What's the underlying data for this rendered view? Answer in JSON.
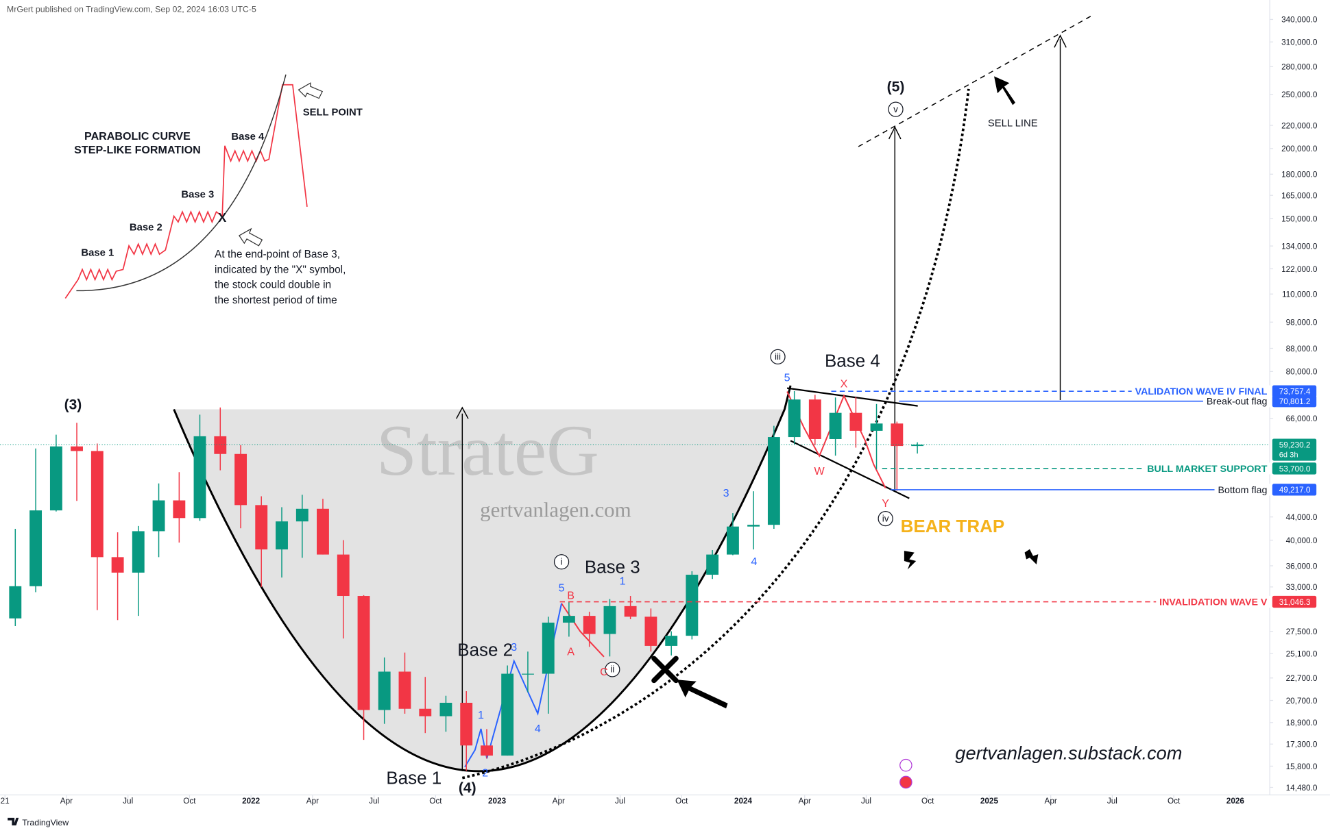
{
  "chart_data": {
    "type": "candlestick",
    "header": "MrGert published on TradingView.com, Sep 02, 2024 16:03 UTC-5",
    "footer": "TradingView",
    "up_color": "#089981",
    "down_color": "#f23645",
    "log_scale": true,
    "grid": false,
    "x": [
      2021.042,
      2021.125,
      2021.208,
      2021.292,
      2021.375,
      2021.458,
      2021.542,
      2021.625,
      2021.708,
      2021.792,
      2021.875,
      2021.958,
      2022.042,
      2022.125,
      2022.208,
      2022.292,
      2022.375,
      2022.458,
      2022.542,
      2022.625,
      2022.708,
      2022.792,
      2022.875,
      2022.958,
      2023.042,
      2023.125,
      2023.208,
      2023.292,
      2023.375,
      2023.458,
      2023.542,
      2023.625,
      2023.708,
      2023.792,
      2023.875,
      2023.958,
      2024.042,
      2024.125,
      2024.208,
      2024.292,
      2024.375,
      2024.458,
      2024.542,
      2024.625,
      2024.708
    ],
    "open": [
      29000,
      33100,
      45200,
      58800,
      57700,
      37300,
      35000,
      41500,
      47100,
      43800,
      61300,
      57000,
      46200,
      38500,
      43200,
      45500,
      37700,
      31800,
      19900,
      23300,
      20000,
      19400,
      20500,
      17200,
      16500,
      23100,
      23100,
      28500,
      29300,
      27200,
      30500,
      29200,
      25900,
      27000,
      34700,
      37700,
      42300,
      42600,
      61100,
      71300,
      60600,
      67500,
      62700,
      64600,
      58900
    ],
    "high": [
      41900,
      58300,
      61700,
      64800,
      59500,
      41300,
      42400,
      50500,
      52900,
      67000,
      69000,
      59100,
      47900,
      45800,
      48200,
      47400,
      40000,
      31900,
      24700,
      25200,
      22800,
      21100,
      21500,
      18400,
      23900,
      25300,
      29200,
      31000,
      29800,
      31400,
      31800,
      30200,
      27500,
      35200,
      38400,
      44700,
      48900,
      64000,
      73800,
      72700,
      71900,
      72000,
      70000,
      65100,
      59800
    ],
    "low": [
      28100,
      32300,
      45000,
      47000,
      30000,
      28800,
      29300,
      37300,
      39600,
      43300,
      53300,
      42000,
      33000,
      34300,
      37200,
      37700,
      26700,
      17600,
      18800,
      19600,
      18100,
      18200,
      15500,
      16300,
      16500,
      21400,
      19600,
      26900,
      25800,
      24800,
      28900,
      25300,
      24900,
      26600,
      34100,
      37600,
      38500,
      41900,
      59300,
      59100,
      56600,
      58500,
      53500,
      49000,
      57100
    ],
    "close": [
      33100,
      45200,
      58800,
      57700,
      37300,
      35000,
      41500,
      47100,
      43800,
      61300,
      57000,
      46200,
      38500,
      43200,
      45500,
      37700,
      31800,
      19900,
      23300,
      20000,
      19400,
      20500,
      17200,
      16500,
      23100,
      23100,
      28500,
      29300,
      27200,
      30500,
      29200,
      25900,
      27000,
      34700,
      37700,
      42300,
      42600,
      61100,
      71300,
      60600,
      67500,
      62700,
      64600,
      58900,
      59230.2
    ],
    "xlim": [
      2020.98,
      2026.14
    ],
    "xticks": [
      {
        "value": 2021,
        "label": "21"
      },
      {
        "value": 2021.25,
        "label": "Apr"
      },
      {
        "value": 2021.5,
        "label": "Jul"
      },
      {
        "value": 2021.75,
        "label": "Oct"
      },
      2022,
      {
        "value": 2022.25,
        "label": "Apr"
      },
      {
        "value": 2022.5,
        "label": "Jul"
      },
      {
        "value": 2022.75,
        "label": "Oct"
      },
      2023,
      {
        "value": 2023.25,
        "label": "Apr"
      },
      {
        "value": 2023.5,
        "label": "Jul"
      },
      {
        "value": 2023.75,
        "label": "Oct"
      },
      2024,
      {
        "value": 2024.25,
        "label": "Apr"
      },
      {
        "value": 2024.5,
        "label": "Jul"
      },
      {
        "value": 2024.75,
        "label": "Oct"
      },
      2025,
      {
        "value": 2025.25,
        "label": "Apr"
      },
      {
        "value": 2025.5,
        "label": "Jul"
      },
      {
        "value": 2025.75,
        "label": "Oct"
      },
      2026
    ],
    "ylim": [
      13940,
      355700
    ],
    "yticks": [
      {
        "value": 340000,
        "label": "340,000.0"
      },
      {
        "value": 310000,
        "label": "310,000.0"
      },
      {
        "value": 280000,
        "label": "280,000.0"
      },
      {
        "value": 250000,
        "label": "250,000.0"
      },
      {
        "value": 220000,
        "label": "220,000.0"
      },
      {
        "value": 200000,
        "label": "200,000.0"
      },
      {
        "value": 180000,
        "label": "180,000.0"
      },
      {
        "value": 165000,
        "label": "165,000.0"
      },
      {
        "value": 150000,
        "label": "150,000.0"
      },
      {
        "value": 134000,
        "label": "134,000.0"
      },
      {
        "value": 122000,
        "label": "122,000.0"
      },
      {
        "value": 110000,
        "label": "110,000.0"
      },
      {
        "value": 98000,
        "label": "98,000.0"
      },
      {
        "value": 88000,
        "label": "88,000.0"
      },
      {
        "value": 80000,
        "label": "80,000.0"
      },
      {
        "value": 66000,
        "label": "66,000.0"
      },
      {
        "value": 44000,
        "label": "44,000.0"
      },
      {
        "value": 40000,
        "label": "40,000.0"
      },
      {
        "value": 36000,
        "label": "36,000.0"
      },
      {
        "value": 33000,
        "label": "33,000.0"
      },
      {
        "value": 27500,
        "label": "27,500.0"
      },
      {
        "value": 25100,
        "label": "25,100.0"
      },
      {
        "value": 22700,
        "label": "22,700.0"
      },
      {
        "value": 20700,
        "label": "20,700.0"
      },
      {
        "value": 18900,
        "label": "18,900.0"
      },
      {
        "value": 17300,
        "label": "17,300.0"
      },
      {
        "value": 15800,
        "label": "15,800.0"
      },
      {
        "value": 14480,
        "label": "14,480.0"
      }
    ],
    "levels": [
      {
        "name": "VALIDATION WAVE IV FINAL",
        "value": 73757.4,
        "label": "73,757.4",
        "color": "#2962ff",
        "text_color": "#2962ff",
        "style": "dashed"
      },
      {
        "name": "Break-out flag",
        "value": 70801.2,
        "label": "70,801.2",
        "color": "#2962ff",
        "text_color": "#131722",
        "style": "solid"
      },
      {
        "name": "BULL MARKET SUPPORT",
        "value": 53700,
        "label": "53,700.0",
        "color": "#089981",
        "text_color": "#089981",
        "style": "dashed"
      },
      {
        "name": "Bottom flag",
        "value": 49217,
        "label": "49,217.0",
        "color": "#2962ff",
        "text_color": "#131722",
        "style": "solid"
      },
      {
        "name": "INVALIDATION WAVE V",
        "value": 31046.3,
        "label": "31,046.3",
        "color": "#f23645",
        "text_color": "#f23645",
        "style": "dashed"
      }
    ],
    "last_price": {
      "value": 59230.2,
      "label": "59,230.2",
      "countdown": "6d 3h",
      "color": "#089981"
    },
    "wave_labels": [
      "(3)",
      "(4)",
      "(5)",
      "i",
      "ii",
      "iii",
      "iv",
      "v",
      "1",
      "2",
      "3",
      "4",
      "5",
      "1",
      "3",
      "4",
      "5",
      "A",
      "B",
      "C",
      "W",
      "X",
      "Y"
    ],
    "bases": [
      "Base 1",
      "Base 2",
      "Base 3",
      "Base 4"
    ],
    "bear_trap": "BEAR TRAP",
    "sell_line": "SELL LINE",
    "website": "gertvanlagen.substack.com",
    "watermark": "StrateG",
    "watermark_site": "gertvanlagen.com",
    "inset": {
      "title": [
        "PARABOLIC CURVE",
        "STEP-LIKE FORMATION"
      ],
      "sell_point": "SELL POINT",
      "bases": [
        "Base 1",
        "Base 2",
        "Base 3",
        "Base 4"
      ],
      "marker": "X",
      "caption": [
        "At the end-point of Base 3,",
        "indicated by the \"X\" symbol,",
        "the stock could double in",
        "the shortest period of time"
      ]
    }
  }
}
